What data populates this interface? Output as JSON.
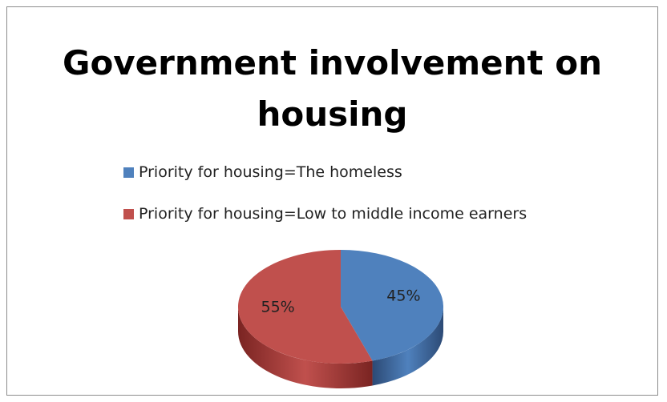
{
  "chart_data": {
    "type": "pie",
    "title": "Government involvement on housing",
    "legend_position": "top-left",
    "three_d": true,
    "slices": [
      {
        "label": "Priority for housing=The homeless",
        "value": 45,
        "data_label": "45%",
        "color": "#4f81bd",
        "side_color": "#2c4a75"
      },
      {
        "label": "Priority for housing=Low to middle income earners",
        "value": 55,
        "data_label": "55%",
        "color": "#c0504d",
        "side_color": "#7a2422"
      }
    ]
  }
}
